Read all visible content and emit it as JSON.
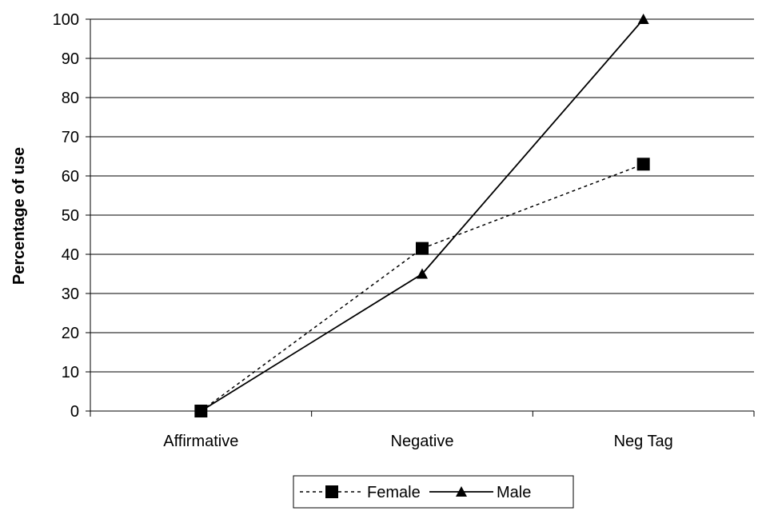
{
  "chart_data": {
    "type": "line",
    "title": "",
    "xlabel": "",
    "ylabel": "Percentage of use",
    "ylim": [
      0,
      100
    ],
    "y_ticks": [
      0,
      10,
      20,
      30,
      40,
      50,
      60,
      70,
      80,
      90,
      100
    ],
    "categories": [
      "Affirmative",
      "Negative",
      "Neg Tag"
    ],
    "grid": "horizontal",
    "legend_position": "bottom",
    "series": [
      {
        "name": "Female",
        "values": [
          0,
          41.5,
          63
        ],
        "marker": "square",
        "line_style": "dashed",
        "color": "#000000"
      },
      {
        "name": "Male",
        "values": [
          0,
          35,
          100
        ],
        "marker": "triangle",
        "line_style": "solid",
        "color": "#000000"
      }
    ]
  }
}
